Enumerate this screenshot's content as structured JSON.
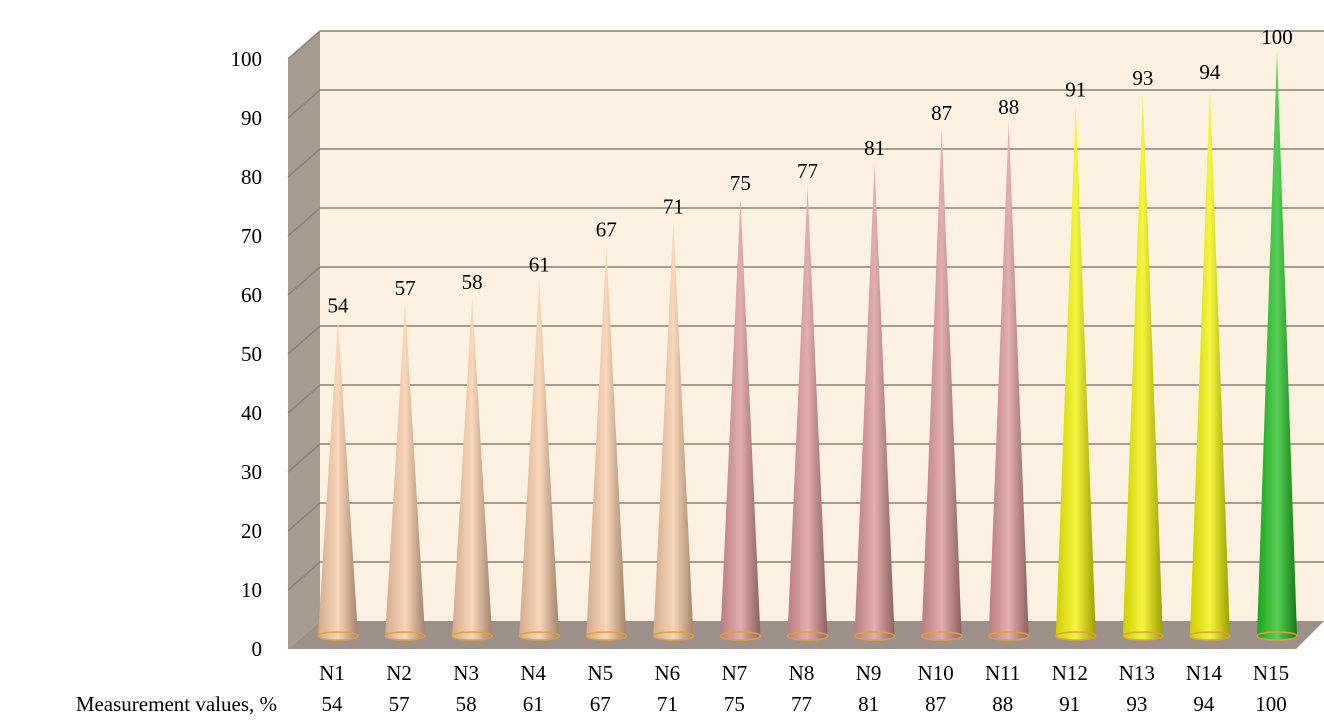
{
  "chart_data": {
    "type": "bar",
    "style": "3d-cone",
    "categories": [
      "N1",
      "N2",
      "N3",
      "N4",
      "N5",
      "N6",
      "N7",
      "N8",
      "N9",
      "N10",
      "N11",
      "N12",
      "N13",
      "N14",
      "N15"
    ],
    "values": [
      54,
      57,
      58,
      61,
      67,
      71,
      75,
      77,
      81,
      87,
      88,
      91,
      93,
      94,
      100
    ],
    "data_labels": [
      "54",
      "57",
      "58",
      "61",
      "67",
      "71",
      "75",
      "77",
      "81",
      "87",
      "88",
      "91",
      "93",
      "94",
      "100"
    ],
    "ylim": [
      0,
      100
    ],
    "yticks": [
      "0",
      "10",
      "20",
      "30",
      "40",
      "50",
      "60",
      "70",
      "80",
      "90",
      "100"
    ],
    "grid": true,
    "legend": "none",
    "table_row": {
      "label": "Measurement values, %",
      "values": [
        "54",
        "57",
        "58",
        "61",
        "67",
        "71",
        "75",
        "77",
        "81",
        "87",
        "88",
        "91",
        "93",
        "94",
        "100"
      ]
    },
    "colors": {
      "plot_wall": "#fdf2e1",
      "side_wall": "#a69b8f",
      "floor": "#9c9088",
      "gridline": "#8a8078",
      "peach": "#f8c9a3",
      "pink": "#d99393",
      "yellow": "#f2f200",
      "green": "#1fbf1f",
      "base_ring": "#e0a040"
    },
    "color_groups": [
      "peach",
      "peach",
      "peach",
      "peach",
      "peach",
      "peach",
      "pink",
      "pink",
      "pink",
      "pink",
      "pink",
      "yellow",
      "yellow",
      "yellow",
      "green"
    ]
  }
}
